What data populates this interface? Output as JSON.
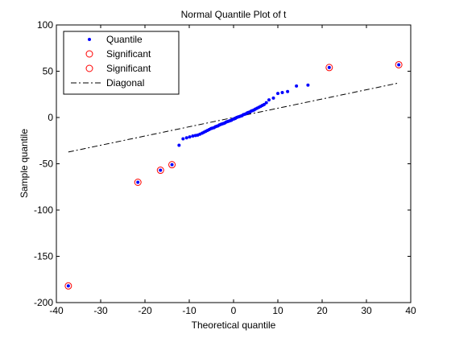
{
  "chart_data": {
    "type": "scatter",
    "title": "Normal Quantile Plot of t",
    "xlabel": "Theoretical quantile",
    "ylabel": "Sample quantile",
    "xlim": [
      -40,
      40
    ],
    "ylim": [
      -200,
      100
    ],
    "xticks": [
      -40,
      -30,
      -20,
      -10,
      0,
      10,
      20,
      30,
      40
    ],
    "yticks": [
      -200,
      -150,
      -100,
      -50,
      0,
      50,
      100
    ],
    "grid": false,
    "legend_position": "top-left",
    "legend": [
      {
        "label": "Quantile",
        "marker": "dot",
        "color": "#0000ff"
      },
      {
        "label": "Significant",
        "marker": "circle",
        "color": "#ff0000"
      },
      {
        "label": "Significant",
        "marker": "circle",
        "color": "#ff0000"
      },
      {
        "label": "Diagonal",
        "marker": "dashdot-line",
        "color": "#000000"
      }
    ],
    "series": [
      {
        "name": "Quantile",
        "color": "#0000ff",
        "x": [
          -37.3,
          -21.6,
          -16.5,
          -13.9,
          -12.3,
          -11.4,
          -10.6,
          -9.9,
          -9.2,
          -8.6,
          -8.1,
          -7.6,
          -7.1,
          -6.7,
          -6.3,
          -5.9,
          -5.5,
          -5.1,
          -4.8,
          -4.4,
          -4.1,
          -3.8,
          -3.5,
          -3.2,
          -2.9,
          -2.6,
          -2.3,
          -2.0,
          -1.7,
          -1.4,
          -1.1,
          -0.8,
          -0.5,
          -0.2,
          0.1,
          0.4,
          0.7,
          1.0,
          1.3,
          1.6,
          1.9,
          2.2,
          2.5,
          2.8,
          3.1,
          3.4,
          3.7,
          4.0,
          4.3,
          4.6,
          4.9,
          5.3,
          5.7,
          6.1,
          6.5,
          6.9,
          7.4,
          8.0,
          9.0,
          10.0,
          11.0,
          12.2,
          14.2,
          16.8,
          21.6,
          37.3
        ],
        "y": [
          -182,
          -70,
          -57,
          -51,
          -30,
          -23,
          -22,
          -21,
          -20,
          -19.5,
          -19,
          -18,
          -17,
          -16,
          -15,
          -14,
          -13,
          -12,
          -11.5,
          -11,
          -10,
          -9.5,
          -9,
          -8,
          -7.5,
          -7,
          -6.5,
          -6,
          -5,
          -4.5,
          -4,
          -3.5,
          -3,
          -2,
          -1.5,
          -1,
          0,
          0.5,
          1,
          1.5,
          2,
          3,
          3.5,
          4,
          5,
          5.5,
          6,
          7,
          7.5,
          8,
          9,
          10,
          11,
          12,
          13,
          14,
          16,
          19,
          21,
          26,
          27,
          28,
          34,
          35,
          54,
          57
        ]
      },
      {
        "name": "Significant",
        "color": "#ff0000",
        "x": [
          -37.3,
          -21.6,
          -16.5,
          -13.9
        ],
        "y": [
          -182,
          -70,
          -57,
          -51
        ]
      },
      {
        "name": "Significant",
        "color": "#ff0000",
        "x": [
          21.6,
          37.3
        ],
        "y": [
          54,
          57
        ]
      },
      {
        "name": "Diagonal",
        "color": "#000000",
        "x": [
          -37.3,
          37.3
        ],
        "y": [
          -37.3,
          37.3
        ]
      }
    ]
  }
}
